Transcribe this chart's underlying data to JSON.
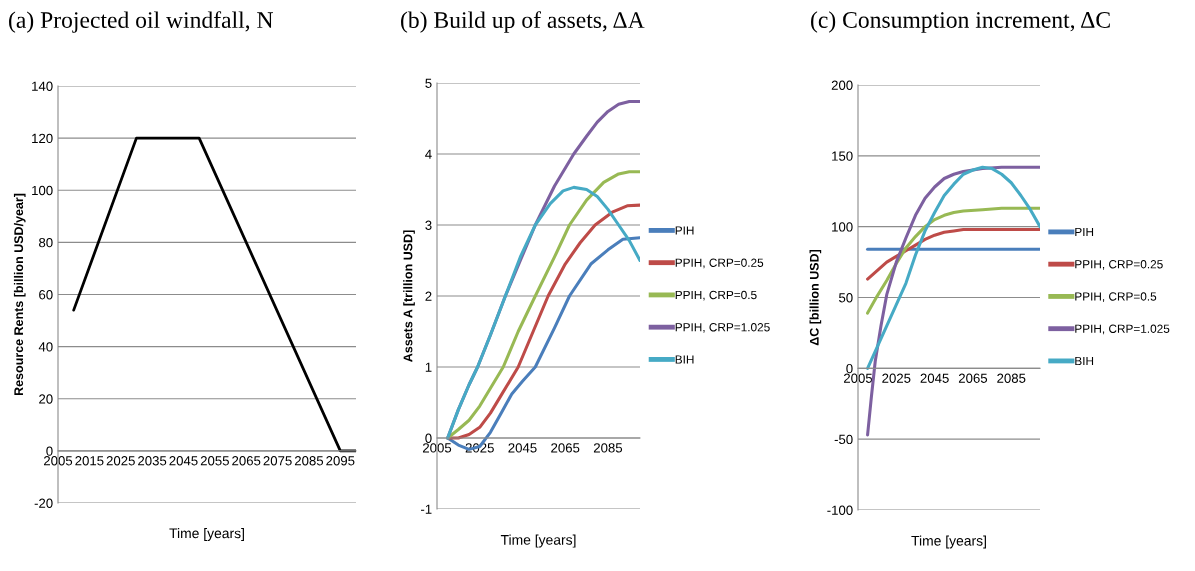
{
  "chart_data": [
    {
      "type": "line",
      "title": "(a) Projected oil windfall, N",
      "xlabel": "Time [years]",
      "ylabel": "Resource Rents [billion USD/year]",
      "xlim": [
        2005,
        2100
      ],
      "xticks": [
        2005,
        2015,
        2025,
        2035,
        2045,
        2055,
        2065,
        2075,
        2085,
        2095
      ],
      "ylim": [
        -20,
        140
      ],
      "yticks": [
        -20,
        0,
        20,
        40,
        60,
        80,
        100,
        120,
        140
      ],
      "grid": "y",
      "legend": false,
      "series": [
        {
          "color": "#000000",
          "x": [
            2010,
            2030,
            2050,
            2095,
            2100
          ],
          "values": [
            54,
            120,
            120,
            0,
            0
          ]
        }
      ]
    },
    {
      "type": "line",
      "title": "(b) Build up of assets, ΔA",
      "xlabel": "Time [years]",
      "ylabel": "Assets A [trillion USD]",
      "xlim": [
        2005,
        2100
      ],
      "xticks": [
        2005,
        2025,
        2045,
        2065,
        2085
      ],
      "ylim": [
        -1,
        5
      ],
      "yticks": [
        -1,
        0,
        1,
        2,
        3,
        4,
        5
      ],
      "grid": "y",
      "legend": "right",
      "series": [
        {
          "name": "PIH",
          "color": "#4a7ebb",
          "x": [
            2010,
            2015,
            2020,
            2025,
            2030,
            2035,
            2040,
            2045,
            2051,
            2060,
            2067,
            2077,
            2085,
            2092,
            2100
          ],
          "values": [
            0,
            -0.1,
            -0.16,
            -0.12,
            0.08,
            0.35,
            0.62,
            0.8,
            1.0,
            1.55,
            2.0,
            2.45,
            2.65,
            2.8,
            2.82
          ]
        },
        {
          "name": "PPIH, CRP=0.25",
          "color": "#be4b48",
          "x": [
            2010,
            2015,
            2020,
            2025,
            2030,
            2035,
            2043,
            2050,
            2057,
            2065,
            2072,
            2079,
            2087,
            2094,
            2100
          ],
          "values": [
            0,
            0,
            0.05,
            0.15,
            0.35,
            0.6,
            1.0,
            1.5,
            2.0,
            2.45,
            2.75,
            3.0,
            3.18,
            3.27,
            3.28
          ]
        },
        {
          "name": "PPIH, CRP=0.5",
          "color": "#98b954",
          "x": [
            2010,
            2015,
            2020,
            2025,
            2030,
            2036,
            2043,
            2051,
            2060,
            2067,
            2075,
            2083,
            2090,
            2095,
            2100
          ],
          "values": [
            0,
            0.12,
            0.25,
            0.45,
            0.7,
            1.0,
            1.5,
            2.0,
            2.55,
            3.0,
            3.35,
            3.6,
            3.72,
            3.75,
            3.75
          ]
        },
        {
          "name": "PPIH, CRP=1.025",
          "color": "#7d60a0",
          "x": [
            2010,
            2015,
            2020,
            2024,
            2030,
            2037,
            2044,
            2051,
            2060,
            2069,
            2075,
            2080,
            2085,
            2090,
            2095,
            2100
          ],
          "values": [
            0,
            0.4,
            0.75,
            1.0,
            1.45,
            2.0,
            2.5,
            3.0,
            3.55,
            4.0,
            4.25,
            4.45,
            4.6,
            4.7,
            4.74,
            4.74
          ]
        },
        {
          "name": "BIH",
          "color": "#46aac5",
          "x": [
            2010,
            2015,
            2020,
            2024,
            2030,
            2037,
            2044,
            2051,
            2058,
            2064,
            2069,
            2075,
            2080,
            2085,
            2090,
            2095,
            2100
          ],
          "values": [
            0,
            0.4,
            0.75,
            1.0,
            1.45,
            2.0,
            2.55,
            3.0,
            3.3,
            3.48,
            3.53,
            3.5,
            3.4,
            3.22,
            3.0,
            2.78,
            2.5
          ]
        }
      ]
    },
    {
      "type": "line",
      "title": "(c) Consumption increment, ΔC",
      "xlabel": "Time [years]",
      "ylabel": "ΔC [billion USD]",
      "xlim": [
        2005,
        2100
      ],
      "xticks": [
        2005,
        2025,
        2045,
        2065,
        2085
      ],
      "ylim": [
        -100,
        200
      ],
      "yticks": [
        -100,
        -50,
        0,
        50,
        100,
        150,
        200
      ],
      "grid": "y",
      "legend": "right",
      "series": [
        {
          "name": "PIH",
          "color": "#4a7ebb",
          "x": [
            2010,
            2100
          ],
          "values": [
            84,
            84
          ]
        },
        {
          "name": "PPIH, CRP=0.25",
          "color": "#be4b48",
          "x": [
            2010,
            2015,
            2020,
            2025,
            2030,
            2035,
            2040,
            2045,
            2050,
            2055,
            2060,
            2070,
            2080,
            2100
          ],
          "values": [
            63,
            69,
            75,
            79,
            83,
            87,
            91,
            94,
            96,
            97,
            98,
            98,
            98,
            98
          ]
        },
        {
          "name": "PPIH, CRP=0.5",
          "color": "#98b954",
          "x": [
            2010,
            2015,
            2020,
            2025,
            2030,
            2035,
            2040,
            2045,
            2050,
            2055,
            2060,
            2070,
            2080,
            2100
          ],
          "values": [
            39,
            51,
            62,
            74,
            85,
            93,
            100,
            105,
            108,
            110,
            111,
            112,
            113,
            113
          ]
        },
        {
          "name": "PPIH, CRP=1.025",
          "color": "#7d60a0",
          "x": [
            2010,
            2012,
            2014,
            2017,
            2020,
            2025,
            2030,
            2035,
            2040,
            2045,
            2050,
            2055,
            2060,
            2070,
            2080,
            2100
          ],
          "values": [
            -47,
            -20,
            5,
            30,
            52,
            75,
            92,
            108,
            120,
            128,
            134,
            137,
            139,
            141,
            142,
            142
          ]
        },
        {
          "name": "BIH",
          "color": "#46aac5",
          "x": [
            2010,
            2015,
            2020,
            2025,
            2030,
            2035,
            2040,
            2045,
            2050,
            2055,
            2060,
            2065,
            2070,
            2075,
            2080,
            2085,
            2090,
            2095,
            2100
          ],
          "values": [
            0,
            15,
            30,
            45,
            60,
            80,
            97,
            110,
            122,
            130,
            137,
            140,
            142,
            141,
            137,
            131,
            122,
            112,
            100
          ]
        }
      ]
    }
  ]
}
